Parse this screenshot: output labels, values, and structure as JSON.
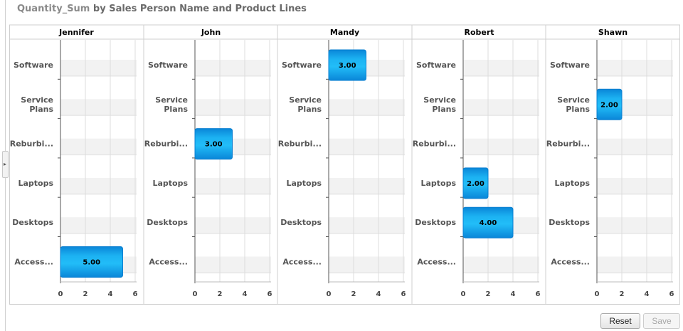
{
  "title": {
    "measure": "Quantity_Sum",
    "by": "by",
    "rest": "Sales Person Name and Product Lines"
  },
  "buttons": {
    "reset": "Reset",
    "save": "Save"
  },
  "colors": {
    "bar": "#1aa7ec",
    "bar_dark": "#0a7fd0",
    "band": "#f2f2f2"
  },
  "chart_data": {
    "type": "bar",
    "orientation": "horizontal",
    "facet_by": "Sales Person Name",
    "panels": [
      "Jennifer",
      "John",
      "Mandy",
      "Robert",
      "Shawn"
    ],
    "categories": [
      "Software",
      "Service Plans",
      "Reburbi...",
      "Laptops",
      "Desktops",
      "Access..."
    ],
    "category_labels": [
      [
        "Software"
      ],
      [
        "Service",
        "Plans"
      ],
      [
        "Reburbi..."
      ],
      [
        "Laptops"
      ],
      [
        "Desktops"
      ],
      [
        "Access..."
      ]
    ],
    "values": [
      [
        null,
        null,
        null,
        null,
        null,
        5
      ],
      [
        null,
        null,
        3,
        null,
        null,
        null
      ],
      [
        3,
        null,
        null,
        null,
        null,
        null
      ],
      [
        null,
        null,
        null,
        2,
        4,
        null
      ],
      [
        null,
        2,
        null,
        null,
        null,
        null
      ]
    ],
    "value_labels": [
      [
        null,
        null,
        null,
        null,
        null,
        "5.00"
      ],
      [
        null,
        null,
        "3.00",
        null,
        null,
        null
      ],
      [
        "3.00",
        null,
        null,
        null,
        null,
        null
      ],
      [
        null,
        null,
        null,
        "2.00",
        "4.00",
        null
      ],
      [
        null,
        "2.00",
        null,
        null,
        null,
        null
      ]
    ],
    "xlim": [
      0,
      6
    ],
    "xticks": [
      "0",
      "2",
      "4",
      "6"
    ],
    "grid": true,
    "legend": "none"
  }
}
